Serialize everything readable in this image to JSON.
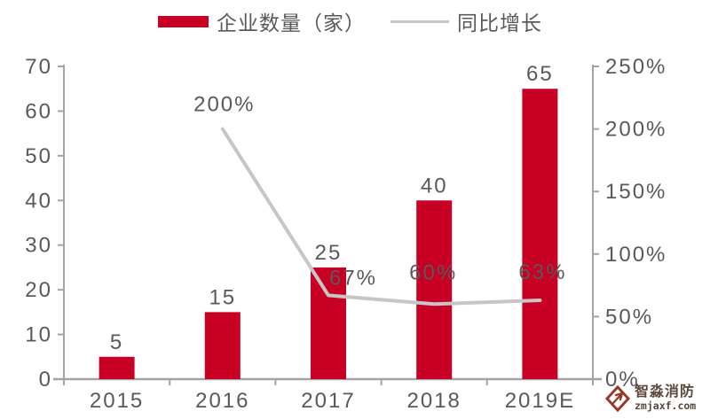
{
  "legend": {
    "bars_label": "企业数量（家）",
    "line_label": "同比增长"
  },
  "colors": {
    "bar": "#C80023",
    "line": "#C6C6C6",
    "text": "#595959",
    "axis": "#A3A3A3",
    "watermark_red": "#97392B",
    "watermark_text": "#5B463B"
  },
  "chart_data": {
    "type": "bar",
    "categories": [
      "2015",
      "2016",
      "2017",
      "2018",
      "2019E"
    ],
    "series": [
      {
        "name": "企业数量（家）",
        "type": "bar",
        "axis": "left",
        "values": [
          5,
          15,
          25,
          40,
          65
        ],
        "labels": [
          "5",
          "15",
          "25",
          "40",
          "65"
        ]
      },
      {
        "name": "同比增长",
        "type": "line",
        "axis": "right",
        "values": [
          null,
          200,
          67,
          60,
          63
        ],
        "labels": [
          null,
          "200%",
          "67%",
          "60%",
          "63%"
        ]
      }
    ],
    "left_axis": {
      "min": 0,
      "max": 70,
      "ticks": [
        "0",
        "10",
        "20",
        "30",
        "40",
        "50",
        "60",
        "70"
      ]
    },
    "right_axis": {
      "min": 0,
      "max": 250,
      "ticks": [
        "0%",
        "50%",
        "100%",
        "150%",
        "200%",
        "250%"
      ]
    },
    "grid": false,
    "legend_position": "top",
    "title": ""
  },
  "watermark": {
    "brand": "智淼消防",
    "site": "zmjaxf.com"
  }
}
